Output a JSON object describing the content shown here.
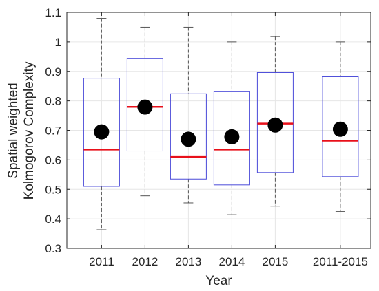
{
  "chart_data": {
    "type": "box",
    "title": "",
    "xlabel": "Year",
    "ylabel": [
      "Spatial weighted",
      "Kolmogorov Complexity"
    ],
    "ylim": [
      0.3,
      1.1
    ],
    "yticks": [
      "0.3",
      "0.4",
      "0.5",
      "0.6",
      "0.7",
      "0.8",
      "0.9",
      "1",
      "1.1"
    ],
    "grid": true,
    "legend": "none",
    "categories": [
      "2011",
      "2012",
      "2013",
      "2014",
      "2015",
      "2011-2015"
    ],
    "positions": [
      1,
      2,
      3,
      4,
      5,
      6.5
    ],
    "xlim": [
      0.2,
      7.2
    ],
    "boxes": [
      {
        "category": "2011",
        "whisker_low": 0.363,
        "q1": 0.51,
        "median": 0.635,
        "q3": 0.877,
        "whisker_high": 1.08,
        "mean": 0.695
      },
      {
        "category": "2012",
        "whisker_low": 0.478,
        "q1": 0.63,
        "median": 0.78,
        "q3": 0.943,
        "whisker_high": 1.05,
        "mean": 0.779
      },
      {
        "category": "2013",
        "whisker_low": 0.454,
        "q1": 0.535,
        "median": 0.61,
        "q3": 0.824,
        "whisker_high": 1.05,
        "mean": 0.67
      },
      {
        "category": "2014",
        "whisker_low": 0.414,
        "q1": 0.515,
        "median": 0.635,
        "q3": 0.831,
        "whisker_high": 1.0,
        "mean": 0.678
      },
      {
        "category": "2015",
        "whisker_low": 0.443,
        "q1": 0.557,
        "median": 0.723,
        "q3": 0.896,
        "whisker_high": 1.018,
        "mean": 0.718
      },
      {
        "category": "2011-2015",
        "whisker_low": 0.425,
        "q1": 0.543,
        "median": 0.665,
        "q3": 0.882,
        "whisker_high": 1.0,
        "mean": 0.704
      }
    ],
    "colors": {
      "box": "#4a4ad9",
      "median": "#e8101a",
      "whisker": "#555555",
      "mean": "#000000",
      "grid": "#e6e6e6",
      "axis": "#262626"
    }
  }
}
